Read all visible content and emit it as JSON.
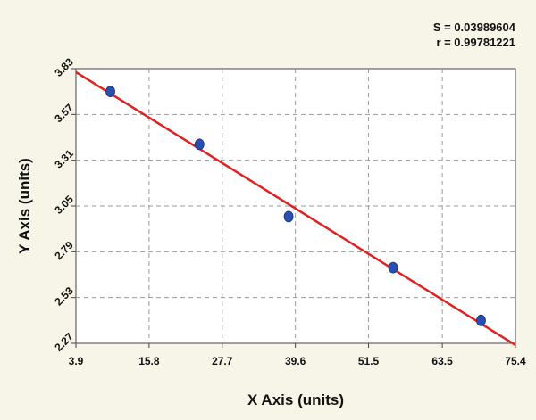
{
  "stats": {
    "s_label": "S = 0.03989604",
    "r_label": "r = 0.99781221"
  },
  "colors": {
    "background": "#f6f5e8",
    "plot_area": "#ffffff",
    "grid": "#9a9a9a",
    "fit_line": "#e02020",
    "points": "#2a4fb3"
  },
  "chart_data": {
    "type": "scatter",
    "title": "",
    "xlabel": "X Axis (units)",
    "ylabel": "Y Axis (units)",
    "xlim": [
      3.9,
      75.4
    ],
    "ylim": [
      2.27,
      3.83
    ],
    "x_ticks": [
      "3.9",
      "15.8",
      "27.7",
      "39.6",
      "51.5",
      "63.5",
      "75.4"
    ],
    "y_ticks": [
      "2.27",
      "2.53",
      "2.79",
      "3.05",
      "3.31",
      "3.57",
      "3.83"
    ],
    "grid": true,
    "series": [
      {
        "points": [
          {
            "x": 9.5,
            "y": 3.7
          },
          {
            "x": 24.0,
            "y": 3.4
          },
          {
            "x": 38.5,
            "y": 2.99
          },
          {
            "x": 55.5,
            "y": 2.7
          },
          {
            "x": 69.8,
            "y": 2.4
          }
        ]
      }
    ],
    "fit_line": {
      "x": [
        3.9,
        75.4
      ],
      "y": [
        3.81,
        2.26
      ]
    }
  }
}
